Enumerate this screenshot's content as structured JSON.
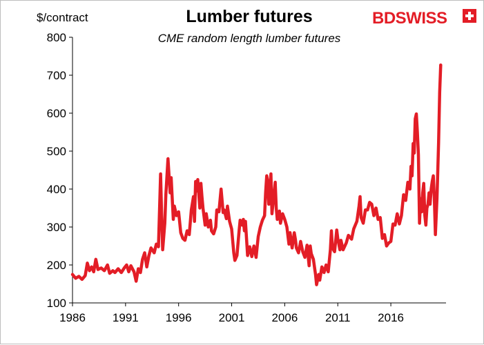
{
  "chart_data": {
    "type": "line",
    "title": "Lumber futures",
    "subtitle": "CME random length lumber futures",
    "ylabel": "$/contract",
    "ylim": [
      100,
      800
    ],
    "yticks": [
      100,
      200,
      300,
      400,
      500,
      600,
      700,
      800
    ],
    "xlim": [
      1986,
      2021.2
    ],
    "xticks": [
      1986,
      1991,
      1996,
      2001,
      2006,
      2011,
      2016
    ],
    "grid": false,
    "legend": "none",
    "series": [
      {
        "color": "#e31d26",
        "points": [
          [
            1986.0,
            175
          ],
          [
            1986.3,
            165
          ],
          [
            1986.6,
            170
          ],
          [
            1986.9,
            162
          ],
          [
            1987.2,
            172
          ],
          [
            1987.4,
            205
          ],
          [
            1987.6,
            185
          ],
          [
            1987.8,
            195
          ],
          [
            1988.0,
            182
          ],
          [
            1988.2,
            215
          ],
          [
            1988.4,
            188
          ],
          [
            1988.7,
            192
          ],
          [
            1989.0,
            185
          ],
          [
            1989.3,
            200
          ],
          [
            1989.5,
            178
          ],
          [
            1989.8,
            185
          ],
          [
            1990.0,
            180
          ],
          [
            1990.3,
            190
          ],
          [
            1990.6,
            180
          ],
          [
            1990.9,
            193
          ],
          [
            1991.1,
            200
          ],
          [
            1991.3,
            182
          ],
          [
            1991.5,
            198
          ],
          [
            1991.8,
            182
          ],
          [
            1992.0,
            157
          ],
          [
            1992.2,
            190
          ],
          [
            1992.4,
            180
          ],
          [
            1992.6,
            215
          ],
          [
            1992.8,
            232
          ],
          [
            1993.0,
            195
          ],
          [
            1993.2,
            225
          ],
          [
            1993.4,
            245
          ],
          [
            1993.7,
            232
          ],
          [
            1993.9,
            255
          ],
          [
            1994.1,
            248
          ],
          [
            1994.3,
            440
          ],
          [
            1994.4,
            330
          ],
          [
            1994.5,
            240
          ],
          [
            1994.7,
            310
          ],
          [
            1994.8,
            385
          ],
          [
            1995.0,
            480
          ],
          [
            1995.2,
            390
          ],
          [
            1995.3,
            430
          ],
          [
            1995.5,
            320
          ],
          [
            1995.6,
            355
          ],
          [
            1995.8,
            330
          ],
          [
            1996.0,
            340
          ],
          [
            1996.2,
            285
          ],
          [
            1996.4,
            270
          ],
          [
            1996.6,
            265
          ],
          [
            1996.8,
            290
          ],
          [
            1997.0,
            280
          ],
          [
            1997.2,
            345
          ],
          [
            1997.4,
            380
          ],
          [
            1997.5,
            315
          ],
          [
            1997.6,
            420
          ],
          [
            1997.7,
            395
          ],
          [
            1997.8,
            425
          ],
          [
            1998.0,
            350
          ],
          [
            1998.1,
            415
          ],
          [
            1998.2,
            380
          ],
          [
            1998.3,
            350
          ],
          [
            1998.5,
            305
          ],
          [
            1998.6,
            335
          ],
          [
            1998.8,
            300
          ],
          [
            1999.0,
            318
          ],
          [
            1999.1,
            290
          ],
          [
            1999.3,
            282
          ],
          [
            1999.5,
            300
          ],
          [
            1999.6,
            345
          ],
          [
            1999.8,
            340
          ],
          [
            2000.0,
            400
          ],
          [
            2000.2,
            338
          ],
          [
            2000.3,
            345
          ],
          [
            2000.5,
            322
          ],
          [
            2000.6,
            355
          ],
          [
            2000.8,
            315
          ],
          [
            2001.0,
            295
          ],
          [
            2001.2,
            232
          ],
          [
            2001.3,
            212
          ],
          [
            2001.5,
            225
          ],
          [
            2001.7,
            290
          ],
          [
            2001.8,
            318
          ],
          [
            2002.0,
            305
          ],
          [
            2002.1,
            320
          ],
          [
            2002.2,
            290
          ],
          [
            2002.3,
            315
          ],
          [
            2002.5,
            225
          ],
          [
            2002.7,
            248
          ],
          [
            2002.9,
            222
          ],
          [
            2003.1,
            250
          ],
          [
            2003.3,
            220
          ],
          [
            2003.5,
            275
          ],
          [
            2003.7,
            300
          ],
          [
            2003.9,
            318
          ],
          [
            2004.1,
            330
          ],
          [
            2004.2,
            390
          ],
          [
            2004.3,
            435
          ],
          [
            2004.4,
            420
          ],
          [
            2004.5,
            360
          ],
          [
            2004.6,
            400
          ],
          [
            2004.7,
            440
          ],
          [
            2004.8,
            335
          ],
          [
            2005.0,
            390
          ],
          [
            2005.1,
            418
          ],
          [
            2005.2,
            350
          ],
          [
            2005.3,
            320
          ],
          [
            2005.5,
            342
          ],
          [
            2005.6,
            310
          ],
          [
            2005.8,
            335
          ],
          [
            2006.0,
            320
          ],
          [
            2006.2,
            300
          ],
          [
            2006.4,
            255
          ],
          [
            2006.5,
            285
          ],
          [
            2006.7,
            245
          ],
          [
            2006.9,
            285
          ],
          [
            2007.0,
            268
          ],
          [
            2007.1,
            245
          ],
          [
            2007.3,
            232
          ],
          [
            2007.5,
            262
          ],
          [
            2007.7,
            235
          ],
          [
            2007.9,
            220
          ],
          [
            2008.1,
            252
          ],
          [
            2008.3,
            198
          ],
          [
            2008.4,
            250
          ],
          [
            2008.5,
            230
          ],
          [
            2008.7,
            215
          ],
          [
            2008.9,
            175
          ],
          [
            2009.0,
            148
          ],
          [
            2009.2,
            175
          ],
          [
            2009.3,
            160
          ],
          [
            2009.5,
            195
          ],
          [
            2009.7,
            180
          ],
          [
            2009.9,
            200
          ],
          [
            2010.1,
            182
          ],
          [
            2010.3,
            240
          ],
          [
            2010.4,
            290
          ],
          [
            2010.5,
            245
          ],
          [
            2010.7,
            235
          ],
          [
            2010.9,
            292
          ],
          [
            2011.0,
            270
          ],
          [
            2011.2,
            240
          ],
          [
            2011.3,
            265
          ],
          [
            2011.5,
            240
          ],
          [
            2011.8,
            258
          ],
          [
            2012.0,
            278
          ],
          [
            2012.3,
            268
          ],
          [
            2012.5,
            295
          ],
          [
            2012.8,
            315
          ],
          [
            2013.0,
            355
          ],
          [
            2013.1,
            380
          ],
          [
            2013.2,
            325
          ],
          [
            2013.4,
            310
          ],
          [
            2013.6,
            345
          ],
          [
            2013.8,
            345
          ],
          [
            2014.0,
            365
          ],
          [
            2014.2,
            360
          ],
          [
            2014.4,
            330
          ],
          [
            2014.6,
            350
          ],
          [
            2014.8,
            320
          ],
          [
            2015.0,
            325
          ],
          [
            2015.2,
            270
          ],
          [
            2015.4,
            280
          ],
          [
            2015.6,
            250
          ],
          [
            2015.8,
            258
          ],
          [
            2016.0,
            262
          ],
          [
            2016.2,
            308
          ],
          [
            2016.4,
            305
          ],
          [
            2016.6,
            335
          ],
          [
            2016.8,
            308
          ],
          [
            2017.0,
            330
          ],
          [
            2017.2,
            385
          ],
          [
            2017.4,
            370
          ],
          [
            2017.6,
            418
          ],
          [
            2017.8,
            400
          ],
          [
            2017.9,
            460
          ],
          [
            2018.0,
            435
          ],
          [
            2018.1,
            520
          ],
          [
            2018.2,
            495
          ],
          [
            2018.3,
            585
          ],
          [
            2018.4,
            598
          ],
          [
            2018.5,
            550
          ],
          [
            2018.6,
            490
          ],
          [
            2018.7,
            310
          ],
          [
            2018.8,
            375
          ],
          [
            2018.9,
            340
          ],
          [
            2019.0,
            390
          ],
          [
            2019.1,
            415
          ],
          [
            2019.2,
            330
          ],
          [
            2019.3,
            305
          ],
          [
            2019.4,
            350
          ],
          [
            2019.5,
            360
          ],
          [
            2019.6,
            390
          ],
          [
            2019.7,
            360
          ],
          [
            2019.8,
            400
          ],
          [
            2019.9,
            420
          ],
          [
            2020.0,
            435
          ],
          [
            2020.1,
            375
          ],
          [
            2020.2,
            280
          ],
          [
            2020.35,
            375
          ],
          [
            2020.5,
            520
          ],
          [
            2020.6,
            655
          ],
          [
            2020.7,
            727
          ]
        ]
      }
    ]
  }
}
